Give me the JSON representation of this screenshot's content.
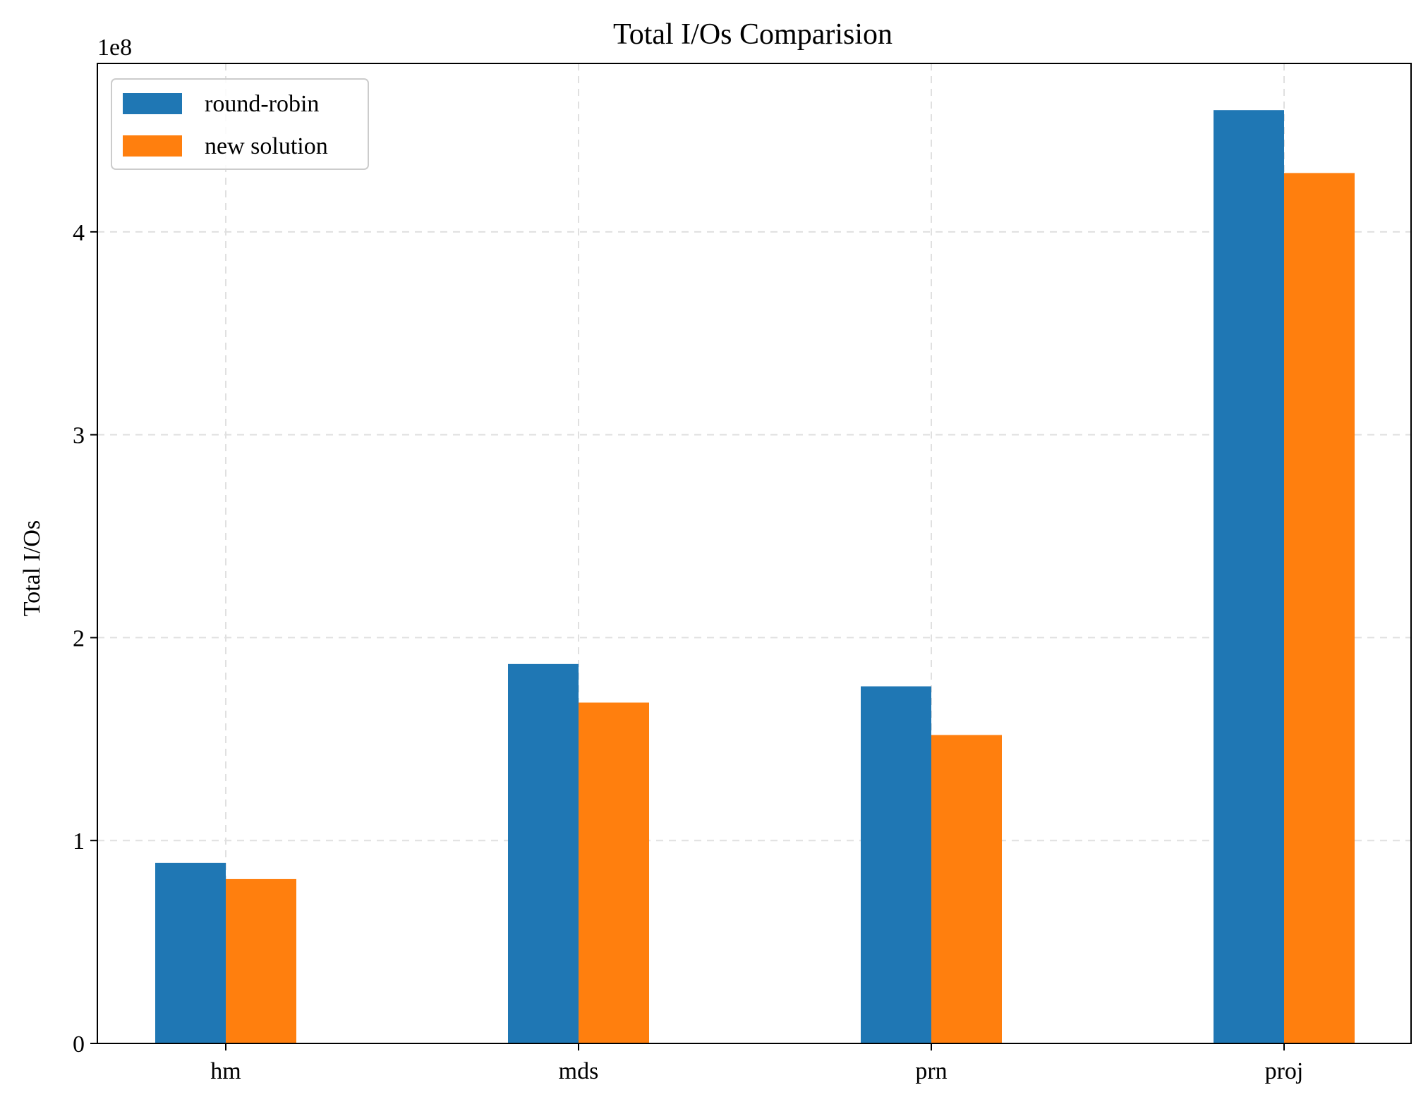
{
  "chart_data": {
    "type": "bar",
    "title": "Total I/Os Comparision",
    "xlabel": "",
    "ylabel": "Total I/Os",
    "offset_label": "1e8",
    "categories": [
      "hm",
      "mds",
      "prn",
      "proj"
    ],
    "series": [
      {
        "name": "round-robin",
        "color": "#1f77b4",
        "values": [
          89000000,
          187000000,
          176000000,
          460000000
        ]
      },
      {
        "name": "new solution",
        "color": "#ff7f0e",
        "values": [
          81000000,
          168000000,
          152000000,
          429000000
        ]
      }
    ],
    "yticks": [
      0,
      1,
      2,
      3,
      4
    ],
    "ytick_scale": 100000000,
    "ylim": [
      0,
      483000000
    ],
    "grid": true,
    "legend_position": "top-left"
  }
}
